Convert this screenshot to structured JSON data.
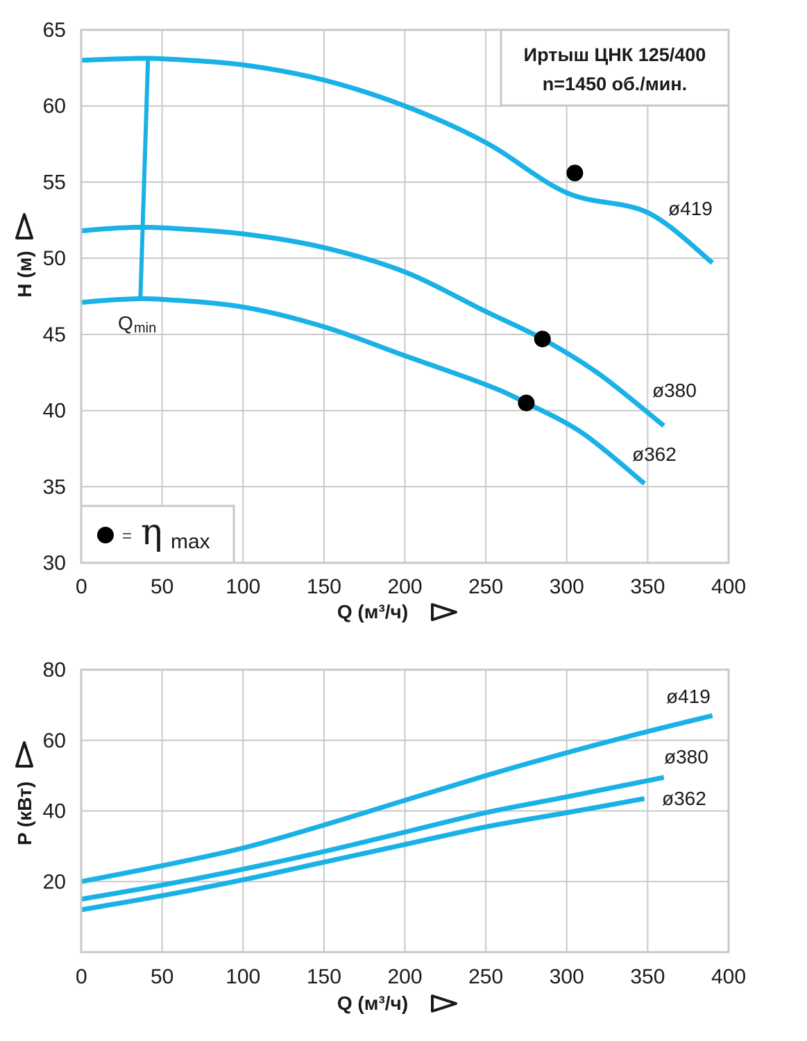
{
  "colors": {
    "curve": "#1ab1e6",
    "grid": "#c8c8c8",
    "text": "#1a1a1a",
    "point": "#000000"
  },
  "info_box": {
    "line1": "Иртыш ЦНК 125/400",
    "line2": "n=1450 об./мин."
  },
  "legend": {
    "dot_equals": "=",
    "eta_symbol": "η",
    "eta_subscript": "max"
  },
  "qmin": {
    "label": "Q",
    "subscript": "min",
    "q": 40
  },
  "chart_data": [
    {
      "type": "line",
      "name": "head-chart",
      "xlabel": "Q (м³/ч)",
      "ylabel": "H (м)",
      "xlim": [
        0,
        400
      ],
      "ylim": [
        30,
        65
      ],
      "xticks": [
        "0",
        "50",
        "100",
        "150",
        "200",
        "250",
        "300",
        "350",
        "400"
      ],
      "yticks": [
        "30",
        "35",
        "40",
        "45",
        "50",
        "55",
        "60",
        "65"
      ],
      "grid": true,
      "series": [
        {
          "name": "ø419",
          "x": [
            0,
            25,
            50,
            100,
            150,
            200,
            250,
            300,
            350,
            390
          ],
          "y": [
            63.0,
            63.1,
            63.1,
            62.7,
            61.7,
            60.0,
            57.6,
            54.3,
            53.0,
            49.7
          ],
          "bep": {
            "q": 305,
            "h": 55.6
          }
        },
        {
          "name": "ø380",
          "x": [
            0,
            25,
            50,
            100,
            150,
            200,
            250,
            285,
            320,
            360
          ],
          "y": [
            51.8,
            52.0,
            52.0,
            51.6,
            50.7,
            49.1,
            46.5,
            44.7,
            42.4,
            39.0
          ],
          "bep": {
            "q": 285,
            "h": 44.7
          }
        },
        {
          "name": "ø362",
          "x": [
            0,
            25,
            50,
            100,
            150,
            200,
            250,
            275,
            310,
            348
          ],
          "y": [
            47.1,
            47.3,
            47.3,
            46.8,
            45.5,
            43.6,
            41.7,
            40.5,
            38.5,
            35.2
          ],
          "bep": {
            "q": 275,
            "h": 40.5
          }
        }
      ]
    },
    {
      "type": "line",
      "name": "power-chart",
      "xlabel": "Q (м³/ч)",
      "ylabel": "P (кВт)",
      "xlim": [
        0,
        400
      ],
      "ylim": [
        0,
        80
      ],
      "xticks": [
        "0",
        "50",
        "100",
        "150",
        "200",
        "250",
        "300",
        "350",
        "400"
      ],
      "yticks": [
        "20",
        "40",
        "60",
        "80"
      ],
      "grid": true,
      "series": [
        {
          "name": "ø419",
          "x": [
            0,
            50,
            100,
            150,
            200,
            250,
            300,
            350,
            390
          ],
          "y": [
            20,
            24.5,
            29.5,
            36,
            43,
            50,
            56.5,
            62.5,
            67
          ]
        },
        {
          "name": "ø380",
          "x": [
            0,
            50,
            100,
            150,
            200,
            250,
            300,
            360
          ],
          "y": [
            15,
            19,
            23.5,
            28.5,
            34,
            39.5,
            44,
            49.5
          ]
        },
        {
          "name": "ø362",
          "x": [
            0,
            50,
            100,
            150,
            200,
            250,
            300,
            348
          ],
          "y": [
            12,
            16,
            20.5,
            25.5,
            30.5,
            35.5,
            39.5,
            43.5
          ]
        }
      ]
    }
  ]
}
